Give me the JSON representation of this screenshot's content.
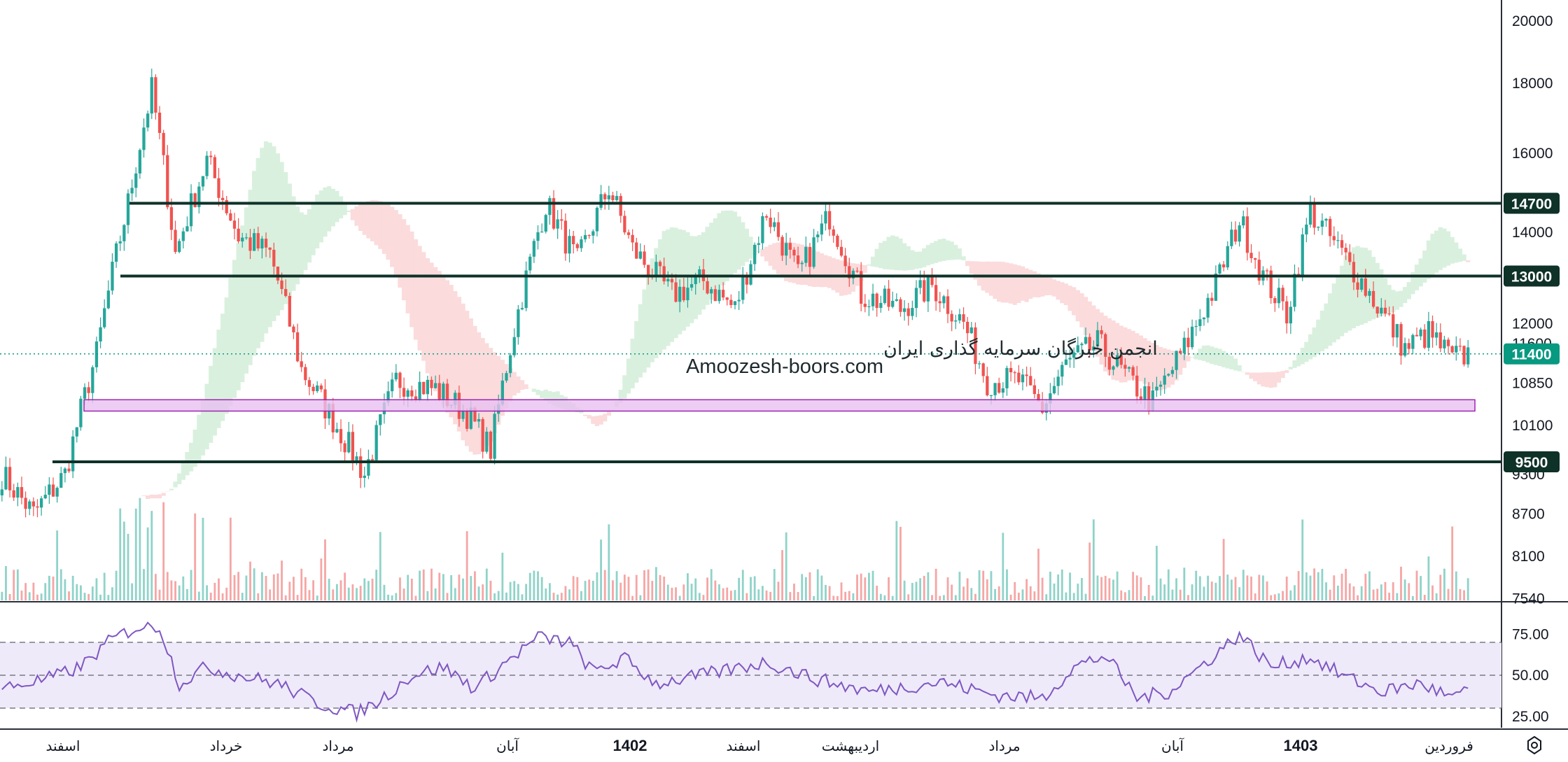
{
  "colors": {
    "up": "#26a69a",
    "down": "#ef5350",
    "vol_up": "#8fd3c9",
    "vol_down": "#f5a6a5",
    "level_line": "#0e3128",
    "last_price": "#089981",
    "zone_fill": "#e8c1f0",
    "zone_stroke": "#9c27b0",
    "rsi_line": "#7e57c2",
    "rsi_band": "#efeaf9",
    "cloud_green": "#d9f0de",
    "cloud_red": "#fbdbdc"
  },
  "watermark": {
    "line1": "انجمن خبرگان سرمایه گذاری ایران",
    "line2": "Amoozesh-boors.com"
  },
  "price_axis": {
    "ticks": [
      "20000",
      "18000",
      "16000",
      "14000",
      "12000",
      "11600",
      "10850",
      "10100",
      "9300",
      "8700",
      "8100",
      "7540"
    ]
  },
  "level_tags": [
    {
      "value": 14700,
      "label": "14700"
    },
    {
      "value": 13000,
      "label": "13000"
    },
    {
      "value": 9500,
      "label": "9500"
    }
  ],
  "last_price": {
    "value": 11400,
    "label": "11400"
  },
  "support_zone": {
    "low": 10350,
    "high": 10550
  },
  "rsi_axis": {
    "ticks": [
      "75.00",
      "50.00",
      "25.00"
    ],
    "upper": 70,
    "middle": 50,
    "lower": 30
  },
  "time_axis": {
    "labels": [
      {
        "text": "اسفند",
        "bold": false
      },
      {
        "text": "خرداد",
        "bold": false
      },
      {
        "text": "مرداد",
        "bold": false
      },
      {
        "text": "آبان",
        "bold": false
      },
      {
        "text": "1402",
        "bold": true
      },
      {
        "text": "اسفند",
        "bold": false
      },
      {
        "text": "اردیبهشت",
        "bold": false
      },
      {
        "text": "مرداد",
        "bold": false
      },
      {
        "text": "آبان",
        "bold": false
      },
      {
        "text": "1403",
        "bold": true
      },
      {
        "text": "فروردین",
        "bold": false
      }
    ]
  },
  "chart_data": {
    "type": "candlestick",
    "title": "",
    "price_scale": "log",
    "price_range": [
      7540,
      20000
    ],
    "horizontal_levels": [
      14700,
      13000,
      9500
    ],
    "support_zone": [
      10350,
      10550
    ],
    "last_price": 11400,
    "price_path_keypoints": [
      {
        "i": 0,
        "p": 9300
      },
      {
        "i": 8,
        "p": 8700
      },
      {
        "i": 16,
        "p": 9300
      },
      {
        "i": 24,
        "p": 11400
      },
      {
        "i": 32,
        "p": 14700
      },
      {
        "i": 38,
        "p": 17800
      },
      {
        "i": 44,
        "p": 13500
      },
      {
        "i": 52,
        "p": 15800
      },
      {
        "i": 60,
        "p": 13900
      },
      {
        "i": 68,
        "p": 13500
      },
      {
        "i": 76,
        "p": 11100
      },
      {
        "i": 84,
        "p": 10200
      },
      {
        "i": 92,
        "p": 9300
      },
      {
        "i": 100,
        "p": 10900
      },
      {
        "i": 110,
        "p": 10750
      },
      {
        "i": 118,
        "p": 10300
      },
      {
        "i": 124,
        "p": 9700
      },
      {
        "i": 130,
        "p": 11900
      },
      {
        "i": 138,
        "p": 14700
      },
      {
        "i": 146,
        "p": 13300
      },
      {
        "i": 154,
        "p": 15100
      },
      {
        "i": 160,
        "p": 13600
      },
      {
        "i": 170,
        "p": 12600
      },
      {
        "i": 178,
        "p": 12900
      },
      {
        "i": 186,
        "p": 12300
      },
      {
        "i": 194,
        "p": 14500
      },
      {
        "i": 202,
        "p": 13000
      },
      {
        "i": 210,
        "p": 14400
      },
      {
        "i": 218,
        "p": 12600
      },
      {
        "i": 228,
        "p": 12300
      },
      {
        "i": 236,
        "p": 12800
      },
      {
        "i": 244,
        "p": 12000
      },
      {
        "i": 250,
        "p": 10900
      },
      {
        "i": 258,
        "p": 10900
      },
      {
        "i": 264,
        "p": 10400
      },
      {
        "i": 270,
        "p": 11200
      },
      {
        "i": 278,
        "p": 11600
      },
      {
        "i": 286,
        "p": 10900
      },
      {
        "i": 292,
        "p": 10500
      },
      {
        "i": 300,
        "p": 11500
      },
      {
        "i": 308,
        "p": 12800
      },
      {
        "i": 314,
        "p": 14300
      },
      {
        "i": 320,
        "p": 13000
      },
      {
        "i": 326,
        "p": 12200
      },
      {
        "i": 332,
        "p": 14500
      },
      {
        "i": 340,
        "p": 13500
      },
      {
        "i": 348,
        "p": 12500
      },
      {
        "i": 356,
        "p": 11500
      },
      {
        "i": 362,
        "p": 11800
      },
      {
        "i": 368,
        "p": 11300
      },
      {
        "i": 372,
        "p": 11400
      }
    ],
    "rsi_keypoints": [
      {
        "i": 0,
        "v": 42
      },
      {
        "i": 12,
        "v": 48
      },
      {
        "i": 20,
        "v": 55
      },
      {
        "i": 28,
        "v": 72
      },
      {
        "i": 34,
        "v": 79
      },
      {
        "i": 40,
        "v": 80
      },
      {
        "i": 45,
        "v": 45
      },
      {
        "i": 52,
        "v": 55
      },
      {
        "i": 60,
        "v": 50
      },
      {
        "i": 70,
        "v": 45
      },
      {
        "i": 80,
        "v": 33
      },
      {
        "i": 90,
        "v": 27
      },
      {
        "i": 96,
        "v": 35
      },
      {
        "i": 104,
        "v": 50
      },
      {
        "i": 112,
        "v": 55
      },
      {
        "i": 120,
        "v": 42
      },
      {
        "i": 128,
        "v": 58
      },
      {
        "i": 136,
        "v": 73
      },
      {
        "i": 144,
        "v": 70
      },
      {
        "i": 150,
        "v": 52
      },
      {
        "i": 158,
        "v": 60
      },
      {
        "i": 166,
        "v": 45
      },
      {
        "i": 178,
        "v": 50
      },
      {
        "i": 194,
        "v": 58
      },
      {
        "i": 206,
        "v": 48
      },
      {
        "i": 220,
        "v": 40
      },
      {
        "i": 238,
        "v": 46
      },
      {
        "i": 252,
        "v": 38
      },
      {
        "i": 264,
        "v": 36
      },
      {
        "i": 272,
        "v": 55
      },
      {
        "i": 280,
        "v": 62
      },
      {
        "i": 288,
        "v": 36
      },
      {
        "i": 296,
        "v": 40
      },
      {
        "i": 304,
        "v": 55
      },
      {
        "i": 314,
        "v": 75
      },
      {
        "i": 322,
        "v": 55
      },
      {
        "i": 332,
        "v": 61
      },
      {
        "i": 340,
        "v": 50
      },
      {
        "i": 350,
        "v": 40
      },
      {
        "i": 360,
        "v": 45
      },
      {
        "i": 368,
        "v": 36
      },
      {
        "i": 372,
        "v": 40
      }
    ],
    "num_bars": 373
  }
}
